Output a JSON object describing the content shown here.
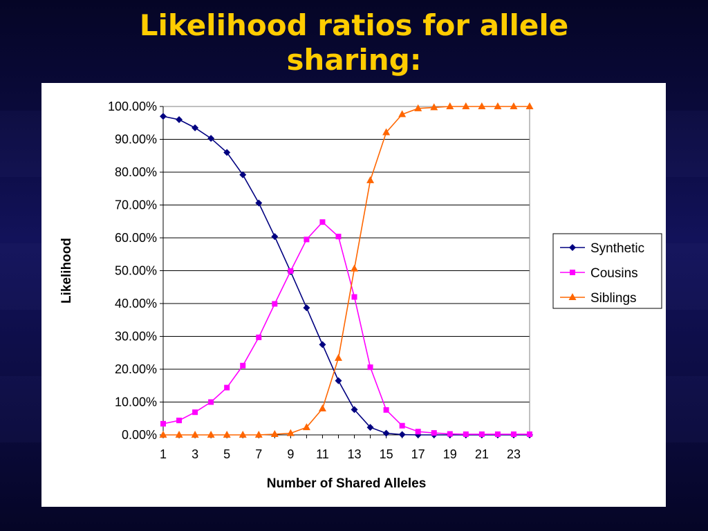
{
  "slide": {
    "title_line1": "Likelihood ratios for allele",
    "title_line2": "sharing:"
  },
  "chart_data": {
    "type": "line",
    "xlabel": "Number of Shared Alleles",
    "ylabel": "Likelihood",
    "x": [
      1,
      2,
      3,
      4,
      5,
      6,
      7,
      8,
      9,
      10,
      11,
      12,
      13,
      14,
      15,
      16,
      17,
      18,
      19,
      20,
      21,
      22,
      23,
      24
    ],
    "x_tick_labels": [
      "1",
      "3",
      "5",
      "7",
      "9",
      "11",
      "13",
      "15",
      "17",
      "19",
      "21",
      "23"
    ],
    "y_tick_labels": [
      "0.00%",
      "10.00%",
      "20.00%",
      "30.00%",
      "40.00%",
      "50.00%",
      "60.00%",
      "70.00%",
      "80.00%",
      "90.00%",
      "100.00%"
    ],
    "ylim": [
      0,
      100
    ],
    "grid": "horizontal",
    "legend_position": "right",
    "series": [
      {
        "name": "Synthetic",
        "color": "#000080",
        "marker": "diamond",
        "values": [
          97,
          96,
          93.5,
          90.3,
          86,
          79.2,
          70.6,
          60.4,
          49.7,
          38.7,
          27.5,
          16.5,
          7.7,
          2.3,
          0.5,
          0.1,
          0,
          0,
          0,
          0,
          0,
          0,
          0,
          0
        ]
      },
      {
        "name": "Cousins",
        "color": "#FF00FF",
        "marker": "square",
        "values": [
          3.4,
          4.4,
          6.9,
          10,
          14.4,
          21.1,
          29.7,
          39.9,
          49.9,
          59.5,
          64.8,
          60.4,
          42,
          20.6,
          7.6,
          2.8,
          1,
          0.6,
          0.3,
          0.2,
          0.2,
          0.2,
          0.2,
          0.2
        ]
      },
      {
        "name": "Siblings",
        "color": "#FF6600",
        "marker": "triangle",
        "values": [
          0,
          0,
          0,
          0,
          0,
          0,
          0,
          0.2,
          0.5,
          2.3,
          8,
          23.4,
          50.6,
          77.5,
          92.1,
          97.6,
          99.4,
          99.7,
          100,
          100,
          100,
          100,
          100,
          100
        ]
      }
    ]
  }
}
